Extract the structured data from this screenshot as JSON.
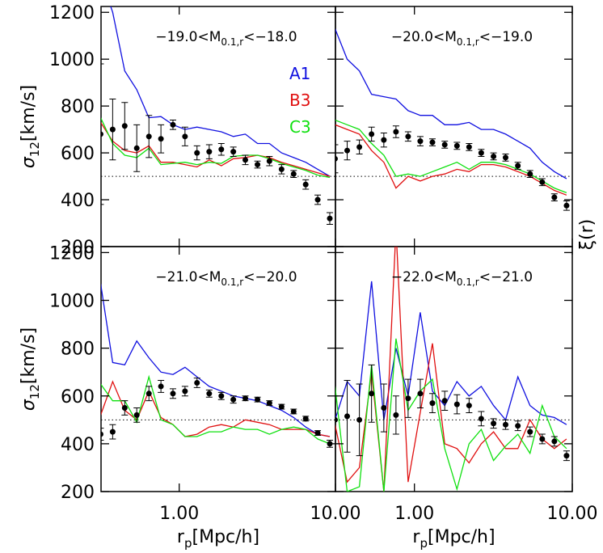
{
  "right_label": "ξ(r)",
  "chart_data": [
    {
      "type": "line",
      "title": {
        "prefix": "−19.0<M",
        "sub": "0.1,r",
        "suffix": "<−18.0"
      },
      "ylabel": {
        "symbol": "σ",
        "sub": "12",
        "unit": "[km/s]"
      },
      "xlog": true,
      "xlim": [
        0.316,
        10
      ],
      "ylim": [
        200,
        1225
      ],
      "yticks": [
        200,
        400,
        600,
        800,
        1000,
        1200
      ],
      "reference_line": 500,
      "x": [
        0.314,
        0.375,
        0.448,
        0.535,
        0.64,
        0.764,
        0.912,
        1.089,
        1.3,
        1.556,
        1.86,
        2.22,
        2.65,
        3.17,
        3.78,
        4.52,
        5.4,
        6.45,
        7.7,
        9.2
      ],
      "series": [
        {
          "name": "A1",
          "color": "#1010e0",
          "values": [
            1350,
            1200,
            950,
            870,
            750,
            755,
            720,
            700,
            710,
            700,
            690,
            670,
            680,
            640,
            640,
            600,
            580,
            560,
            530,
            500
          ]
        },
        {
          "name": "B3",
          "color": "#e01010",
          "values": [
            730,
            650,
            610,
            600,
            630,
            560,
            560,
            550,
            540,
            570,
            545,
            575,
            580,
            590,
            580,
            560,
            545,
            530,
            515,
            500
          ]
        },
        {
          "name": "C3",
          "color": "#10e010",
          "values": [
            750,
            640,
            590,
            580,
            620,
            550,
            555,
            560,
            550,
            560,
            555,
            585,
            590,
            590,
            575,
            555,
            540,
            525,
            505,
            495
          ]
        }
      ],
      "points": {
        "color": "#000000",
        "values": [
          680,
          700,
          715,
          620,
          670,
          660,
          720,
          670,
          600,
          605,
          615,
          605,
          570,
          550,
          565,
          530,
          510,
          465,
          400,
          320
        ],
        "errors": [
          300,
          130,
          100,
          100,
          90,
          60,
          20,
          40,
          30,
          30,
          25,
          20,
          20,
          15,
          20,
          20,
          15,
          20,
          20,
          25
        ]
      }
    },
    {
      "type": "line",
      "title": {
        "prefix": "−20.0<M",
        "sub": "0.1,r",
        "suffix": "<−19.0"
      },
      "xlog": true,
      "xlim": [
        0.316,
        10
      ],
      "ylim": [
        200,
        1225
      ],
      "reference_line": 500,
      "x": [
        0.314,
        0.375,
        0.448,
        0.535,
        0.64,
        0.764,
        0.912,
        1.089,
        1.3,
        1.556,
        1.86,
        2.22,
        2.65,
        3.17,
        3.78,
        4.52,
        5.4,
        6.45,
        7.7,
        9.2
      ],
      "series": [
        {
          "color": "#1010e0",
          "values": [
            1130,
            1000,
            950,
            850,
            840,
            830,
            780,
            760,
            760,
            720,
            720,
            730,
            700,
            700,
            680,
            650,
            620,
            560,
            520,
            490
          ]
        },
        {
          "color": "#e01010",
          "values": [
            720,
            700,
            680,
            610,
            560,
            450,
            500,
            480,
            500,
            510,
            530,
            520,
            550,
            550,
            540,
            520,
            500,
            470,
            440,
            420
          ]
        },
        {
          "color": "#10e010",
          "values": [
            740,
            720,
            700,
            640,
            590,
            500,
            510,
            500,
            520,
            540,
            560,
            530,
            560,
            560,
            550,
            530,
            510,
            480,
            450,
            430
          ]
        }
      ],
      "points": {
        "color": "#000000",
        "values": [
          575,
          610,
          625,
          680,
          655,
          690,
          670,
          650,
          645,
          635,
          630,
          625,
          600,
          585,
          580,
          545,
          510,
          475,
          410,
          375
        ],
        "errors": [
          60,
          40,
          30,
          30,
          30,
          25,
          20,
          20,
          15,
          15,
          15,
          15,
          15,
          15,
          15,
          15,
          15,
          15,
          15,
          20
        ]
      }
    },
    {
      "type": "line",
      "title": {
        "prefix": "−21.0<M",
        "sub": "0.1,r",
        "suffix": "<−20.0"
      },
      "ylabel": {
        "symbol": "σ",
        "sub": "12",
        "unit": "[km/s]"
      },
      "xlabel": {
        "symbol": "r",
        "sub": "p",
        "unit": "[Mpc/h]"
      },
      "xlog": true,
      "xlim": [
        0.316,
        10
      ],
      "ylim": [
        200,
        1225
      ],
      "yticks": [
        200,
        400,
        600,
        800,
        1000,
        1200
      ],
      "xticks": [
        {
          "value": 1,
          "label": "1.00"
        },
        {
          "value": 10,
          "label": "10.00"
        }
      ],
      "reference_line": 500,
      "x": [
        0.314,
        0.375,
        0.448,
        0.535,
        0.64,
        0.764,
        0.912,
        1.089,
        1.3,
        1.556,
        1.86,
        2.22,
        2.65,
        3.17,
        3.78,
        4.52,
        5.4,
        6.45,
        7.7,
        9.2
      ],
      "series": [
        {
          "color": "#1010e0",
          "values": [
            1070,
            740,
            730,
            830,
            760,
            700,
            690,
            720,
            680,
            640,
            620,
            600,
            590,
            580,
            560,
            540,
            510,
            470,
            440,
            430
          ]
        },
        {
          "color": "#e01010",
          "values": [
            520,
            660,
            540,
            500,
            620,
            510,
            480,
            430,
            440,
            470,
            480,
            470,
            500,
            490,
            480,
            460,
            460,
            460,
            440,
            430
          ]
        },
        {
          "color": "#10e010",
          "values": [
            650,
            580,
            580,
            490,
            680,
            500,
            480,
            430,
            430,
            450,
            450,
            470,
            460,
            460,
            440,
            460,
            470,
            460,
            420,
            400
          ]
        }
      ],
      "points": {
        "color": "#000000",
        "values": [
          440,
          450,
          550,
          520,
          610,
          640,
          610,
          620,
          655,
          610,
          600,
          585,
          590,
          585,
          570,
          555,
          535,
          505,
          445,
          400
        ],
        "errors": [
          25,
          30,
          30,
          30,
          30,
          25,
          20,
          20,
          20,
          15,
          15,
          15,
          10,
          10,
          10,
          10,
          10,
          10,
          10,
          15
        ]
      }
    },
    {
      "type": "line",
      "title": {
        "prefix": "−22.0<M",
        "sub": "0.1,r",
        "suffix": "<−21.0"
      },
      "xlabel": {
        "symbol": "r",
        "sub": "p",
        "unit": "[Mpc/h]"
      },
      "xlog": true,
      "xlim": [
        0.316,
        10
      ],
      "ylim": [
        200,
        1225
      ],
      "xticks": [
        {
          "value": 1,
          "label": "1.00"
        },
        {
          "value": 10,
          "label": "10.00"
        }
      ],
      "reference_line": 500,
      "x": [
        0.314,
        0.375,
        0.448,
        0.535,
        0.64,
        0.764,
        0.912,
        1.089,
        1.3,
        1.556,
        1.86,
        2.22,
        2.65,
        3.17,
        3.78,
        4.52,
        5.4,
        6.45,
        7.7,
        9.2
      ],
      "series": [
        {
          "color": "#1010e0",
          "values": [
            500,
            660,
            600,
            1080,
            500,
            800,
            600,
            950,
            620,
            560,
            660,
            600,
            640,
            560,
            500,
            680,
            560,
            520,
            510,
            480
          ]
        },
        {
          "color": "#e01010",
          "values": [
            480,
            240,
            300,
            700,
            200,
            1300,
            240,
            530,
            820,
            400,
            380,
            320,
            400,
            450,
            380,
            380,
            500,
            420,
            380,
            420
          ]
        },
        {
          "color": "#10e010",
          "values": [
            640,
            200,
            220,
            730,
            200,
            840,
            540,
            620,
            670,
            380,
            210,
            400,
            460,
            330,
            390,
            440,
            360,
            560,
            430,
            380
          ]
        }
      ],
      "points": {
        "color": "#000000",
        "values": [
          500,
          515,
          500,
          610,
          550,
          520,
          590,
          610,
          570,
          580,
          565,
          560,
          505,
          485,
          480,
          475,
          450,
          420,
          410,
          350
        ],
        "errors": [
          100,
          150,
          150,
          120,
          100,
          80,
          80,
          60,
          40,
          40,
          40,
          30,
          30,
          20,
          20,
          20,
          20,
          20,
          20,
          20
        ]
      }
    }
  ]
}
